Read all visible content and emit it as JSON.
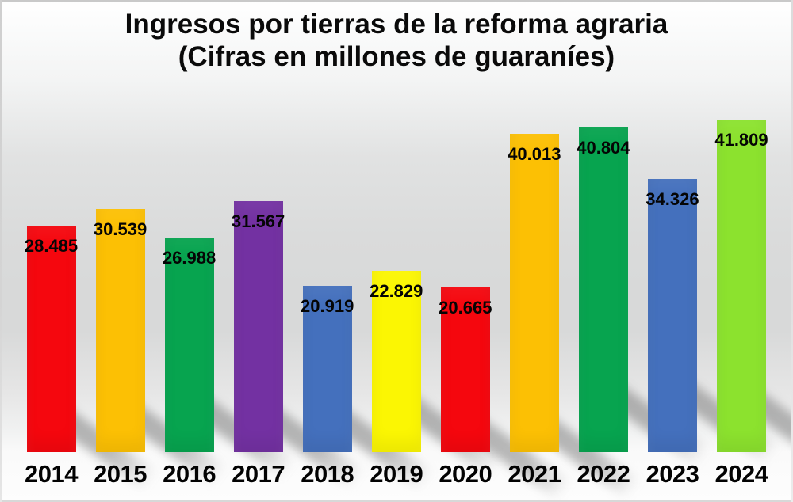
{
  "chart_data": {
    "type": "bar",
    "title_line1": "Ingresos por tierras de la reforma agraria",
    "title_line2": "(Cifras en millones de guaraníes)",
    "categories": [
      "2014",
      "2015",
      "2016",
      "2017",
      "2018",
      "2019",
      "2020",
      "2021",
      "2022",
      "2023",
      "2024"
    ],
    "values": [
      28485,
      30539,
      26988,
      31567,
      20919,
      22829,
      20665,
      40013,
      40804,
      34326,
      41809
    ],
    "value_labels": [
      "28.485",
      "30.539",
      "26.988",
      "31.567",
      "20.919",
      "22.829",
      "20.665",
      "40.013",
      "40.804",
      "34.326",
      "41.809"
    ],
    "bar_colors": [
      "#f5070e",
      "#fcc004",
      "#07a44f",
      "#7331a2",
      "#4470bd",
      "#fbf603",
      "#f5070e",
      "#fcc004",
      "#07a44f",
      "#4470bd",
      "#8ce22e"
    ],
    "label_color": "#000000",
    "title_color": "#000000",
    "xlabel": "",
    "ylabel": "",
    "ylim": [
      0,
      45000
    ],
    "grid": false,
    "legend": false
  }
}
